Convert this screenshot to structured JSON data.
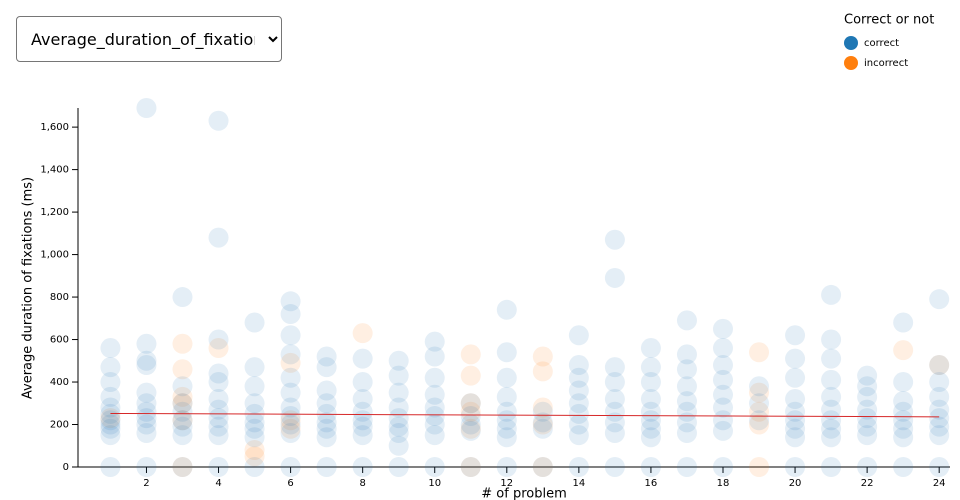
{
  "selector": {
    "selected": "Average_duration_of_fixations"
  },
  "chart_data": {
    "type": "scatter",
    "x_label": "# of problem",
    "y_label": "Average duration of fixations (ms)",
    "legend_title": "Correct or not",
    "xlim": [
      0.1,
      24.3
    ],
    "xticks": [
      2,
      4,
      6,
      8,
      10,
      12,
      14,
      16,
      18,
      20,
      22,
      24
    ],
    "ylim": [
      0,
      1690
    ],
    "yticks": [
      0,
      200,
      400,
      600,
      800,
      {
        "value": 1000,
        "label": "1,000"
      },
      {
        "value": 1200,
        "label": "1,200"
      },
      {
        "value": 1400,
        "label": "1,400"
      },
      {
        "value": 1600,
        "label": "1,600"
      }
    ],
    "point_opacity": 0.12,
    "series": [
      {
        "name": "correct",
        "color": "#1f77b4",
        "x": [
          1,
          1,
          1,
          1,
          1,
          1,
          1,
          1,
          1,
          1,
          1,
          2,
          2,
          2,
          2,
          2,
          2,
          2,
          2,
          2,
          2,
          2,
          3,
          3,
          3,
          3,
          3,
          3,
          3,
          3,
          4,
          4,
          4,
          4,
          4,
          4,
          4,
          4,
          4,
          4,
          4,
          5,
          5,
          5,
          5,
          5,
          5,
          5,
          5,
          5,
          6,
          6,
          6,
          6,
          6,
          6,
          6,
          6,
          6,
          6,
          6,
          7,
          7,
          7,
          7,
          7,
          7,
          7,
          7,
          7,
          8,
          8,
          8,
          8,
          8,
          8,
          8,
          8,
          9,
          9,
          9,
          9,
          9,
          9,
          9,
          9,
          9,
          10,
          10,
          10,
          10,
          10,
          10,
          10,
          10,
          10,
          11,
          11,
          11,
          11,
          11,
          12,
          12,
          12,
          12,
          12,
          12,
          12,
          12,
          12,
          13,
          13,
          13,
          13,
          14,
          14,
          14,
          14,
          14,
          14,
          14,
          14,
          14,
          15,
          15,
          15,
          15,
          15,
          15,
          15,
          15,
          15,
          16,
          16,
          16,
          16,
          16,
          16,
          16,
          16,
          16,
          17,
          17,
          17,
          17,
          17,
          17,
          17,
          17,
          17,
          18,
          18,
          18,
          18,
          18,
          18,
          18,
          18,
          18,
          19,
          19,
          19,
          20,
          20,
          20,
          20,
          20,
          20,
          20,
          20,
          20,
          21,
          21,
          21,
          21,
          21,
          21,
          21,
          21,
          21,
          21,
          22,
          22,
          22,
          22,
          22,
          22,
          22,
          22,
          23,
          23,
          23,
          23,
          23,
          23,
          23,
          23,
          24,
          24,
          24,
          24,
          24,
          24,
          24,
          24,
          24
        ],
        "values": [
          0,
          150,
          180,
          200,
          220,
          250,
          280,
          330,
          400,
          470,
          560,
          0,
          160,
          200,
          230,
          260,
          300,
          350,
          480,
          500,
          580,
          1690,
          0,
          150,
          190,
          220,
          260,
          300,
          380,
          800,
          0,
          150,
          190,
          230,
          270,
          320,
          400,
          440,
          600,
          1080,
          1630,
          0,
          140,
          180,
          210,
          250,
          300,
          380,
          470,
          680,
          0,
          160,
          200,
          240,
          280,
          350,
          420,
          530,
          620,
          720,
          780,
          0,
          140,
          180,
          210,
          250,
          300,
          360,
          470,
          520,
          0,
          150,
          190,
          220,
          260,
          320,
          400,
          510,
          0,
          100,
          160,
          190,
          230,
          280,
          350,
          430,
          500,
          0,
          150,
          200,
          240,
          280,
          340,
          420,
          520,
          590,
          0,
          170,
          200,
          240,
          300,
          0,
          140,
          180,
          220,
          260,
          330,
          420,
          540,
          740,
          0,
          180,
          210,
          260,
          0,
          150,
          200,
          250,
          300,
          360,
          420,
          480,
          620,
          0,
          160,
          210,
          260,
          320,
          400,
          470,
          890,
          1070,
          0,
          140,
          180,
          220,
          260,
          320,
          400,
          470,
          560,
          0,
          160,
          210,
          260,
          310,
          380,
          460,
          530,
          690,
          0,
          170,
          220,
          280,
          340,
          410,
          480,
          560,
          650,
          220,
          300,
          380,
          0,
          140,
          180,
          220,
          260,
          320,
          420,
          510,
          620,
          0,
          140,
          180,
          220,
          270,
          330,
          410,
          510,
          600,
          810,
          0,
          150,
          190,
          230,
          270,
          330,
          380,
          430,
          0,
          140,
          180,
          220,
          260,
          310,
          400,
          680,
          0,
          150,
          190,
          230,
          270,
          330,
          400,
          480,
          790
        ]
      },
      {
        "name": "incorrect",
        "color": "#ff7f0e",
        "x": [
          1,
          3,
          3,
          3,
          3,
          3,
          3,
          4,
          5,
          5,
          6,
          6,
          6,
          8,
          11,
          11,
          11,
          11,
          11,
          11,
          13,
          13,
          13,
          13,
          13,
          19,
          19,
          19,
          19,
          19,
          23,
          24
        ],
        "values": [
          230,
          0,
          220,
          300,
          330,
          460,
          580,
          560,
          50,
          80,
          180,
          220,
          490,
          630,
          0,
          180,
          260,
          300,
          430,
          530,
          0,
          200,
          280,
          450,
          520,
          0,
          200,
          260,
          350,
          540,
          550,
          480
        ]
      }
    ],
    "trend_line": {
      "x": [
        1,
        24
      ],
      "values": [
        252,
        236
      ],
      "color": "#d62728"
    }
  }
}
